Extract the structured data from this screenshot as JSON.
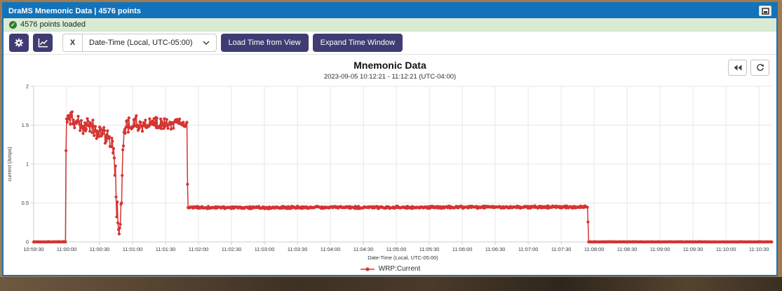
{
  "window": {
    "title": "DraMS Mnemonic Data | 4576 points"
  },
  "status": {
    "message": "4576 points loaded"
  },
  "toolbar": {
    "x_label": "X",
    "datetime_value": "Date-Time (Local, UTC-05:00)",
    "load_time_label": "Load Time from View",
    "expand_window_label": "Expand Time Window"
  },
  "icons": {
    "titlebar_button": "popout-window-icon",
    "status_icon": "check-circle-icon",
    "settings": "gear-icon",
    "chart_type": "line-chart-icon",
    "dropdown_chevron": "chevron-down-icon",
    "rewind": "fast-backward-icon",
    "reset": "reset-icon"
  },
  "colors": {
    "titlebar_blue": "#1272ba",
    "status_green_bg": "#d9ecd3",
    "button_navy": "#3f3c73",
    "series_red": "#d53431",
    "grid_gray": "#e7e7e7"
  },
  "chart_data": {
    "type": "scatter",
    "title": "Mnemonic Data",
    "subtitle": "2023-09-05 10:12:21 - 11:12:21 (UTC-04:00)",
    "xlabel": "Date-Time (Local, UTC-05:00)",
    "ylabel": "current (Amps)",
    "ylim": [
      0,
      2
    ],
    "y_ticks": [
      0,
      0.5,
      1,
      1.5,
      2
    ],
    "x_ticks": [
      "10:59:30",
      "11:00:00",
      "11:00:30",
      "11:01:00",
      "11:01:30",
      "11:02:00",
      "11:02:30",
      "11:03:00",
      "11:03:30",
      "11:04:00",
      "11:04:30",
      "11:05:00",
      "11:05:30",
      "11:06:00",
      "11:06:30",
      "11:07:00",
      "11:07:30",
      "11:08:00",
      "11:08:30",
      "11:09:00",
      "11:09:30",
      "11:10:00",
      "11:10:30"
    ],
    "x_tick_interval_seconds": 30,
    "x_start_label": "10:59:30",
    "x_window_seconds": 672,
    "grid": true,
    "legend_position": "bottom-center",
    "series": [
      {
        "name": "WRP:Current",
        "color": "#d53431",
        "points_per_second": 1.8,
        "description": "0 A until 11:00:00; steps to noisy 1.3-1.7 A declining; sharp dip to ~0.05 A near 11:00:50; recovers to noisy ~1.5 A until 11:01:50; steps down to ~0.45 A plateau until ~11:07:57; steps to 0 A through end of window",
        "profile_anchors": [
          [
            0,
            0,
            0.004
          ],
          [
            29,
            0,
            0.004
          ],
          [
            29.6,
            1.58,
            0.03
          ],
          [
            31,
            1.61,
            0.07
          ],
          [
            36,
            1.57,
            0.1
          ],
          [
            44,
            1.5,
            0.11
          ],
          [
            54,
            1.44,
            0.1
          ],
          [
            62,
            1.4,
            0.09
          ],
          [
            68,
            1.34,
            0.09
          ],
          [
            72,
            1.26,
            0.1
          ],
          [
            74.5,
            0.8,
            0.3
          ],
          [
            76.5,
            0.35,
            0.2
          ],
          [
            78,
            0.08,
            0.05
          ],
          [
            79.5,
            0.5,
            0.25
          ],
          [
            81.5,
            1.2,
            0.15
          ],
          [
            84,
            1.47,
            0.1
          ],
          [
            92,
            1.52,
            0.09
          ],
          [
            100,
            1.49,
            0.08
          ],
          [
            110,
            1.51,
            0.07
          ],
          [
            122,
            1.52,
            0.06
          ],
          [
            132,
            1.53,
            0.05
          ],
          [
            139.5,
            1.51,
            0.04
          ],
          [
            140.2,
            0.44,
            0.013
          ],
          [
            300,
            0.445,
            0.013
          ],
          [
            504,
            0.45,
            0.013
          ],
          [
            505,
            0,
            0.003
          ],
          [
            672,
            0,
            0.003
          ]
        ]
      }
    ]
  }
}
